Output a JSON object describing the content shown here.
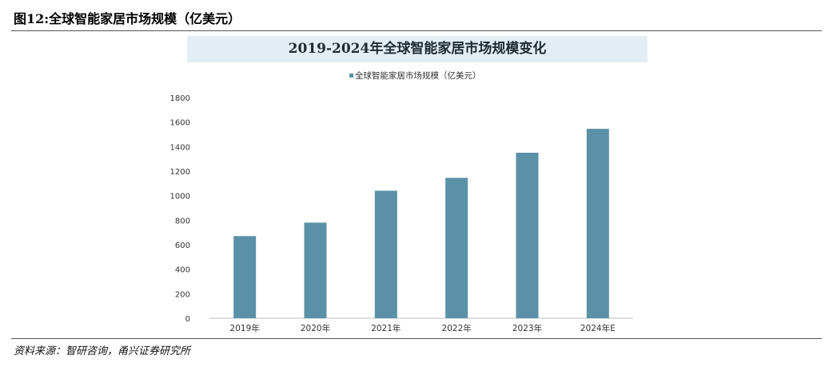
{
  "figure": {
    "title": "图12:全球智能家居市场规模（亿美元）",
    "source": "资料来源：智研咨询，甬兴证券研究所"
  },
  "chart_data": {
    "type": "bar",
    "title": "2019-2024年全球智能家居市场规模变化",
    "categories": [
      "2019年",
      "2020年",
      "2021年",
      "2022年",
      "2023年",
      "2024年E"
    ],
    "series": [
      {
        "name": "全球智能家居市场规模（亿美元）",
        "values": [
          670,
          780,
          1040,
          1145,
          1350,
          1545
        ]
      }
    ],
    "ylim": [
      0,
      1800
    ],
    "yticks": [
      0,
      200,
      400,
      600,
      800,
      1000,
      1200,
      1400,
      1600,
      1800
    ],
    "xlabel": "",
    "ylabel": "",
    "legend": "top-center",
    "grid": false,
    "colors": {
      "bar": "#5b91a6",
      "title_band": "#e3eef4",
      "axis": "#bfbfbf",
      "tick_text": "#333333"
    }
  }
}
